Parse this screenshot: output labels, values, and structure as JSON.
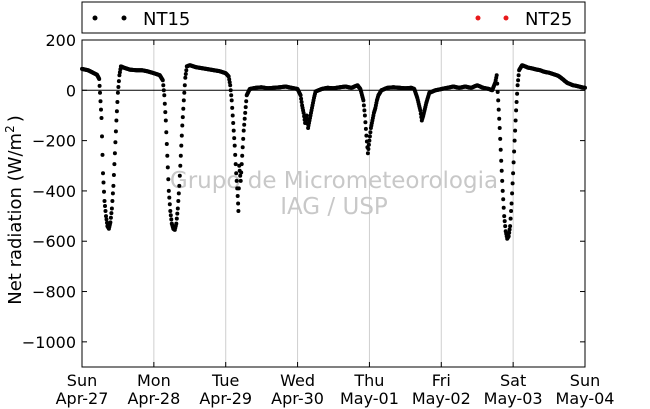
{
  "chart_data": {
    "type": "scatter",
    "ylabel": "Net radiation (W/m",
    "ylabel_sup": "2",
    "ylabel_end": ")",
    "ylim": [
      -1100,
      200
    ],
    "yticks": [
      200,
      0,
      -200,
      -400,
      -600,
      -800,
      -1000
    ],
    "ytick_labels": [
      "200",
      "0",
      "−200",
      "−400",
      "−600",
      "−800",
      "−1000"
    ],
    "xlim": [
      "2014-04-27",
      "2014-05-04"
    ],
    "xticks": [
      {
        "day": "Sun",
        "date": "Apr-27"
      },
      {
        "day": "Mon",
        "date": "Apr-28"
      },
      {
        "day": "Tue",
        "date": "Apr-29"
      },
      {
        "day": "Wed",
        "date": "Apr-30"
      },
      {
        "day": "Thu",
        "date": "May-01"
      },
      {
        "day": "Fri",
        "date": "May-02"
      },
      {
        "day": "Sat",
        "date": "May-03"
      },
      {
        "day": "Sun",
        "date": "May-04"
      }
    ],
    "grid": "vertical",
    "legend_placement": "top",
    "watermark": [
      "Grupo de Micrometeorologia",
      "IAG / USP"
    ],
    "series": [
      {
        "name": "NT15",
        "color": "#000000",
        "marker": "dot",
        "points": [
          [
            "2014-04-27 00:00",
            85
          ],
          [
            "2014-04-27 02:00",
            80
          ],
          [
            "2014-04-27 04:00",
            68
          ],
          [
            "2014-04-27 05:00",
            62
          ],
          [
            "2014-04-27 05:45",
            45
          ],
          [
            "2014-04-27 06:00",
            -10
          ],
          [
            "2014-04-27 06:30",
            -110
          ],
          [
            "2014-04-27 07:00",
            -330
          ],
          [
            "2014-04-27 07:30",
            -440
          ],
          [
            "2014-04-27 08:00",
            -500
          ],
          [
            "2014-04-27 08:30",
            -540
          ],
          [
            "2014-04-27 09:00",
            -550
          ],
          [
            "2014-04-27 09:30",
            -525
          ],
          [
            "2014-04-27 10:00",
            -470
          ],
          [
            "2014-04-27 10:30",
            -380
          ],
          [
            "2014-04-27 11:00",
            -250
          ],
          [
            "2014-04-27 11:30",
            -120
          ],
          [
            "2014-04-27 12:00",
            -10
          ],
          [
            "2014-04-27 12:30",
            60
          ],
          [
            "2014-04-27 13:00",
            95
          ],
          [
            "2014-04-27 14:00",
            90
          ],
          [
            "2014-04-27 16:00",
            82
          ],
          [
            "2014-04-27 18:00",
            80
          ],
          [
            "2014-04-27 20:00",
            80
          ],
          [
            "2014-04-27 22:00",
            75
          ],
          [
            "2014-04-28 00:00",
            68
          ],
          [
            "2014-04-28 02:00",
            60
          ],
          [
            "2014-04-28 03:00",
            40
          ],
          [
            "2014-04-28 03:30",
            -20
          ],
          [
            "2014-04-28 04:00",
            -120
          ],
          [
            "2014-04-28 04:30",
            -260
          ],
          [
            "2014-04-28 05:00",
            -400
          ],
          [
            "2014-04-28 05:30",
            -480
          ],
          [
            "2014-04-28 06:00",
            -530
          ],
          [
            "2014-04-28 06:30",
            -550
          ],
          [
            "2014-04-28 07:00",
            -555
          ],
          [
            "2014-04-28 07:30",
            -530
          ],
          [
            "2014-04-28 08:00",
            -470
          ],
          [
            "2014-04-28 08:30",
            -380
          ],
          [
            "2014-04-28 09:00",
            -260
          ],
          [
            "2014-04-28 09:30",
            -140
          ],
          [
            "2014-04-28 10:00",
            -40
          ],
          [
            "2014-04-28 10:30",
            50
          ],
          [
            "2014-04-28 11:00",
            95
          ],
          [
            "2014-04-28 12:00",
            100
          ],
          [
            "2014-04-28 14:00",
            92
          ],
          [
            "2014-04-28 16:00",
            88
          ],
          [
            "2014-04-28 18:00",
            84
          ],
          [
            "2014-04-28 20:00",
            80
          ],
          [
            "2014-04-28 22:00",
            76
          ],
          [
            "2014-04-29 00:00",
            68
          ],
          [
            "2014-04-29 01:00",
            55
          ],
          [
            "2014-04-29 01:30",
            20
          ],
          [
            "2014-04-29 02:00",
            -40
          ],
          [
            "2014-04-29 02:30",
            -130
          ],
          [
            "2014-04-29 03:00",
            -220
          ],
          [
            "2014-04-29 03:30",
            -330
          ],
          [
            "2014-04-29 04:00",
            -420
          ],
          [
            "2014-04-29 04:15",
            -480
          ],
          [
            "2014-04-29 04:30",
            -300
          ],
          [
            "2014-04-29 05:00",
            -360
          ],
          [
            "2014-04-29 05:30",
            -260
          ],
          [
            "2014-04-29 06:00",
            -160
          ],
          [
            "2014-04-29 06:30",
            -90
          ],
          [
            "2014-04-29 07:00",
            -20
          ],
          [
            "2014-04-29 08:00",
            5
          ],
          [
            "2014-04-29 10:00",
            10
          ],
          [
            "2014-04-29 12:00",
            12
          ],
          [
            "2014-04-29 14:00",
            8
          ],
          [
            "2014-04-29 16:00",
            10
          ],
          [
            "2014-04-29 18:00",
            12
          ],
          [
            "2014-04-29 20:00",
            15
          ],
          [
            "2014-04-29 22:00",
            10
          ],
          [
            "2014-04-30 00:00",
            5
          ],
          [
            "2014-04-30 01:00",
            -20
          ],
          [
            "2014-04-30 01:30",
            -60
          ],
          [
            "2014-04-30 02:00",
            -90
          ],
          [
            "2014-04-30 02:30",
            -130
          ],
          [
            "2014-04-30 03:00",
            -100
          ],
          [
            "2014-04-30 03:30",
            -150
          ],
          [
            "2014-04-30 04:00",
            -120
          ],
          [
            "2014-04-30 04:30",
            -90
          ],
          [
            "2014-04-30 05:00",
            -60
          ],
          [
            "2014-04-30 05:30",
            -30
          ],
          [
            "2014-04-30 06:00",
            -5
          ],
          [
            "2014-04-30 08:00",
            5
          ],
          [
            "2014-04-30 10:00",
            10
          ],
          [
            "2014-04-30 12:00",
            8
          ],
          [
            "2014-04-30 14:00",
            12
          ],
          [
            "2014-04-30 16:00",
            15
          ],
          [
            "2014-04-30 18:00",
            10
          ],
          [
            "2014-04-30 20:00",
            20
          ],
          [
            "2014-04-30 21:00",
            5
          ],
          [
            "2014-04-30 22:00",
            -40
          ],
          [
            "2014-04-30 22:30",
            -100
          ],
          [
            "2014-04-30 23:00",
            -180
          ],
          [
            "2014-04-30 23:30",
            -250
          ],
          [
            "2014-05-01 00:00",
            -200
          ],
          [
            "2014-05-01 00:30",
            -150
          ],
          [
            "2014-05-01 01:00",
            -120
          ],
          [
            "2014-05-01 01:30",
            -90
          ],
          [
            "2014-05-01 02:00",
            -70
          ],
          [
            "2014-05-01 02:30",
            -40
          ],
          [
            "2014-05-01 03:00",
            -20
          ],
          [
            "2014-05-01 04:00",
            0
          ],
          [
            "2014-05-01 06:00",
            10
          ],
          [
            "2014-05-01 08:00",
            12
          ],
          [
            "2014-05-01 10:00",
            10
          ],
          [
            "2014-05-01 12:00",
            8
          ],
          [
            "2014-05-01 14:00",
            10
          ],
          [
            "2014-05-01 15:00",
            5
          ],
          [
            "2014-05-01 16:00",
            -30
          ],
          [
            "2014-05-01 17:00",
            -80
          ],
          [
            "2014-05-01 17:30",
            -120
          ],
          [
            "2014-05-01 18:00",
            -100
          ],
          [
            "2014-05-01 19:00",
            -50
          ],
          [
            "2014-05-01 20:00",
            -10
          ],
          [
            "2014-05-01 22:00",
            0
          ],
          [
            "2014-05-02 00:00",
            5
          ],
          [
            "2014-05-02 02:00",
            10
          ],
          [
            "2014-05-02 04:00",
            15
          ],
          [
            "2014-05-02 06:00",
            10
          ],
          [
            "2014-05-02 08:00",
            15
          ],
          [
            "2014-05-02 10:00",
            10
          ],
          [
            "2014-05-02 12:00",
            20
          ],
          [
            "2014-05-02 14:00",
            10
          ],
          [
            "2014-05-02 16:00",
            5
          ],
          [
            "2014-05-02 17:00",
            0
          ],
          [
            "2014-05-02 18:00",
            30
          ],
          [
            "2014-05-02 18:30",
            60
          ],
          [
            "2014-05-02 19:00",
            -40
          ],
          [
            "2014-05-02 19:30",
            -150
          ],
          [
            "2014-05-02 20:00",
            -280
          ],
          [
            "2014-05-02 20:30",
            -400
          ],
          [
            "2014-05-02 21:00",
            -500
          ],
          [
            "2014-05-02 21:30",
            -560
          ],
          [
            "2014-05-02 22:00",
            -590
          ],
          [
            "2014-05-02 22:30",
            -580
          ],
          [
            "2014-05-02 23:00",
            -540
          ],
          [
            "2014-05-02 23:30",
            -450
          ],
          [
            "2014-05-03 00:00",
            -330
          ],
          [
            "2014-05-03 00:30",
            -200
          ],
          [
            "2014-05-03 01:00",
            -80
          ],
          [
            "2014-05-03 01:30",
            20
          ],
          [
            "2014-05-03 02:00",
            80
          ],
          [
            "2014-05-03 03:00",
            100
          ],
          [
            "2014-05-03 04:00",
            95
          ],
          [
            "2014-05-03 05:00",
            90
          ],
          [
            "2014-05-03 06:00",
            88
          ],
          [
            "2014-05-03 07:00",
            85
          ],
          [
            "2014-05-03 08:00",
            82
          ],
          [
            "2014-05-03 09:00",
            80
          ],
          [
            "2014-05-03 10:00",
            75
          ],
          [
            "2014-05-03 11:00",
            72
          ],
          [
            "2014-05-03 12:00",
            70
          ],
          [
            "2014-05-03 13:00",
            66
          ],
          [
            "2014-05-03 14:00",
            62
          ],
          [
            "2014-05-03 15:00",
            58
          ],
          [
            "2014-05-03 16:00",
            50
          ],
          [
            "2014-05-03 17:00",
            40
          ],
          [
            "2014-05-03 18:00",
            30
          ],
          [
            "2014-05-03 19:00",
            25
          ],
          [
            "2014-05-03 20:00",
            20
          ],
          [
            "2014-05-03 21:00",
            18
          ],
          [
            "2014-05-03 22:00",
            15
          ],
          [
            "2014-05-03 23:00",
            12
          ],
          [
            "2014-05-04 00:00",
            10
          ]
        ]
      },
      {
        "name": "NT25",
        "color": "#e8191b",
        "marker": "dot",
        "points": []
      }
    ]
  }
}
